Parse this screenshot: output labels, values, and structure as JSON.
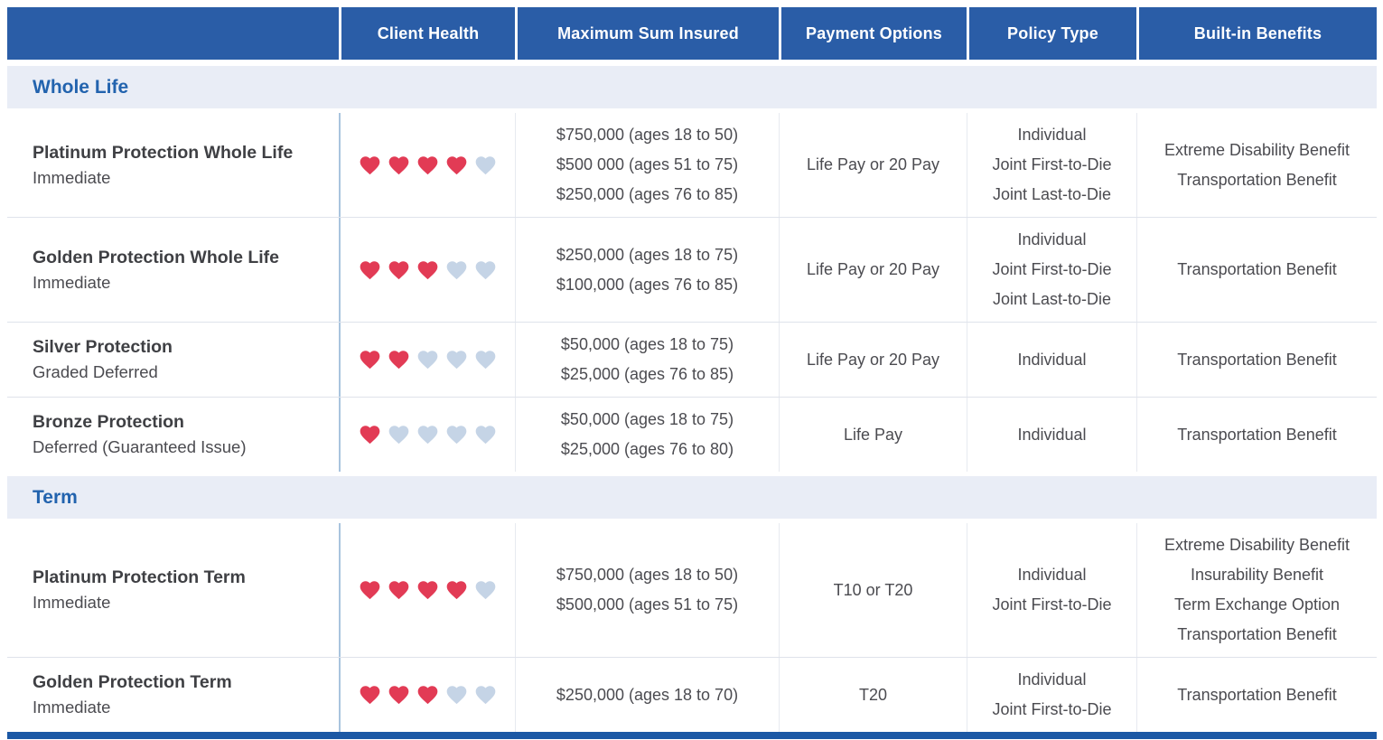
{
  "columns": [
    "",
    "Client Health",
    "Maximum Sum Insured",
    "Payment Options",
    "Policy Type",
    "Built-in Benefits"
  ],
  "sections": [
    {
      "title": "Whole Life",
      "products": [
        {
          "name": "Platinum Protection Whole Life",
          "subtitle": "Immediate",
          "hearts_filled": 4,
          "hearts_total": 5,
          "max_sum_insured": [
            "$750,000 (ages 18 to 50)",
            "$500 000 (ages 51 to 75)",
            "$250,000 (ages 76 to 85)"
          ],
          "payment_options": "Life Pay or 20 Pay",
          "policy_type": [
            "Individual",
            "Joint First-to-Die",
            "Joint Last-to-Die"
          ],
          "built_in_benefits": [
            "Extreme Disability Benefit",
            "Transportation Benefit"
          ]
        },
        {
          "name": "Golden Protection Whole Life",
          "subtitle": "Immediate",
          "hearts_filled": 3,
          "hearts_total": 5,
          "max_sum_insured": [
            "$250,000 (ages 18 to 75)",
            "$100,000 (ages 76 to 85)"
          ],
          "payment_options": "Life Pay or 20 Pay",
          "policy_type": [
            "Individual",
            "Joint First-to-Die",
            "Joint Last-to-Die"
          ],
          "built_in_benefits": [
            "Transportation Benefit"
          ]
        },
        {
          "name": "Silver Protection",
          "subtitle": "Graded Deferred",
          "hearts_filled": 2,
          "hearts_total": 5,
          "max_sum_insured": [
            "$50,000 (ages 18 to 75)",
            "$25,000 (ages 76 to 85)"
          ],
          "payment_options": "Life Pay or 20 Pay",
          "policy_type": [
            "Individual"
          ],
          "built_in_benefits": [
            "Transportation Benefit"
          ]
        },
        {
          "name": "Bronze Protection",
          "subtitle": "Deferred (Guaranteed Issue)",
          "hearts_filled": 1,
          "hearts_total": 5,
          "max_sum_insured": [
            "$50,000 (ages 18 to 75)",
            "$25,000 (ages 76 to 80)"
          ],
          "payment_options": "Life Pay",
          "policy_type": [
            "Individual"
          ],
          "built_in_benefits": [
            "Transportation Benefit"
          ]
        }
      ]
    },
    {
      "title": "Term",
      "products": [
        {
          "name": "Platinum Protection Term",
          "subtitle": "Immediate",
          "hearts_filled": 4,
          "hearts_total": 5,
          "max_sum_insured": [
            "$750,000 (ages 18 to 50)",
            "$500,000 (ages 51 to 75)"
          ],
          "payment_options": "T10 or T20",
          "policy_type": [
            "Individual",
            "Joint First-to-Die"
          ],
          "built_in_benefits": [
            "Extreme Disability Benefit",
            "Insurability Benefit",
            "Term Exchange Option",
            "Transportation Benefit"
          ]
        },
        {
          "name": "Golden Protection Term",
          "subtitle": "Immediate",
          "hearts_filled": 3,
          "hearts_total": 5,
          "max_sum_insured": [
            "$250,000 (ages 18 to 70)"
          ],
          "payment_options": "T20",
          "policy_type": [
            "Individual",
            "Joint First-to-Die"
          ],
          "built_in_benefits": [
            "Transportation Benefit"
          ]
        }
      ]
    }
  ],
  "colors": {
    "header_bg": "#2a5da7",
    "header_text": "#ffffff",
    "section_bg": "#e9edf6",
    "section_text": "#2263ae",
    "heart_filled": "#e23b55",
    "heart_empty": "#c5d4e6",
    "bottom_bar": "#1b58a5",
    "body_text": "#4b4b50"
  }
}
